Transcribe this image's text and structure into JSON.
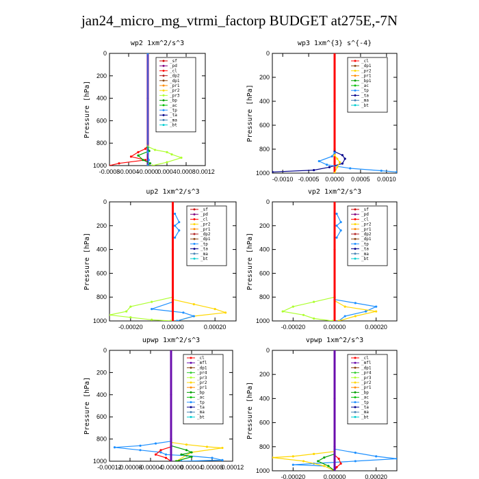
{
  "title": "jan24_micro_mg_vtrmi_factorp  BUDGET at275E,-7N",
  "colors": {
    "sf": "#cc0000",
    "pd": "#800080",
    "cl": "#ff0000",
    "dp2": "#b22222",
    "dp1": "#8b4513",
    "pr1": "#ff8c00",
    "pr2": "#ffd700",
    "pr3": "#adff2f",
    "pr4": "#32cd32",
    "bp": "#00a000",
    "bp1": "#00a000",
    "ac": "#00c000",
    "tp": "#1e90ff",
    "ta": "#00008b",
    "ma": "#4682b4",
    "bt": "#00ced1",
    "mfl": "#6a0dad"
  },
  "chart_data": [
    {
      "type": "line",
      "title": "wp2  1xm^2/s^3",
      "ylabel": "Pressure [hPa]",
      "xlim": [
        -0.0008,
        0.0012
      ],
      "ylim": [
        1000,
        0
      ],
      "xticks": [
        -0.0008,
        -0.0004,
        0.0,
        0.0004,
        0.0008,
        0.0012
      ],
      "xtick_labels": [
        "-0.0008",
        "-0.0004",
        "-0.0000",
        "0.0004",
        "0.0008",
        "0.0012"
      ],
      "yticks": [
        0,
        200,
        400,
        600,
        800,
        1000
      ],
      "ytick_labels": [
        "0",
        "200",
        "400",
        "600",
        "800",
        "1000"
      ],
      "legend": [
        "_sf",
        "_pd",
        "_cl",
        "_dp2",
        "_dp1",
        "_pr1",
        "_pr2",
        "_pr3",
        "_bp",
        "_ac",
        "_tp",
        "_ta",
        "_ma",
        "_bt"
      ],
      "legend_colors": [
        "sf",
        "pd",
        "cl",
        "dp2",
        "dp1",
        "pr1",
        "pr2",
        "pr3",
        "bp",
        "ac",
        "tp",
        "ta",
        "ma",
        "bt"
      ],
      "legend_position": "top-right",
      "series": [
        {
          "color": "pd",
          "x": [
            0,
            0,
            0,
            0
          ],
          "y": [
            0,
            400,
            800,
            1000
          ]
        },
        {
          "color": "cl",
          "x": [
            0,
            -5e-05,
            -0.0002,
            -0.00035,
            -5e-05,
            -0.0006,
            -0.0008
          ],
          "y": [
            820,
            850,
            880,
            920,
            950,
            980,
            1000
          ]
        },
        {
          "color": "pr3",
          "x": [
            0,
            0.00015,
            0.0004,
            0.0005,
            0.0007,
            0.0004,
            0.0001
          ],
          "y": [
            830,
            860,
            880,
            900,
            930,
            970,
            1000
          ]
        },
        {
          "color": "bp",
          "x": [
            0,
            3e-05,
            -0.0002,
            -0.0001,
            5e-05,
            0
          ],
          "y": [
            840,
            870,
            910,
            950,
            980,
            1000
          ]
        },
        {
          "color": "tp",
          "x": [
            0,
            0,
            2e-05,
            0
          ],
          "y": [
            0,
            880,
            950,
            1000
          ]
        }
      ]
    },
    {
      "type": "line",
      "title": "wp3  1xm^{3} s^{-4}",
      "ylabel": "Pressure [hPa]",
      "xlim": [
        -0.0012,
        0.0012
      ],
      "ylim": [
        1000,
        0
      ],
      "xticks": [
        -0.001,
        -0.0005,
        0.0,
        0.0005,
        0.001
      ],
      "xtick_labels": [
        "-0.0010",
        "-0.0005",
        "0.0000",
        "0.0005",
        "0.0010"
      ],
      "yticks": [
        0,
        200,
        400,
        600,
        800,
        1000
      ],
      "ytick_labels": [
        "0",
        "200",
        "400",
        "600",
        "800",
        "1000"
      ],
      "legend": [
        "_cl",
        "_dp1",
        "_pr2",
        "_pr1",
        "_bp1",
        "_ac",
        "_tp",
        "_ta",
        "_ma",
        "_bt"
      ],
      "legend_colors": [
        "cl",
        "dp1",
        "pr2",
        "pr1",
        "bp1",
        "ac",
        "tp",
        "ta",
        "ma",
        "bt"
      ],
      "legend_position": "top-right",
      "series": [
        {
          "color": "cl",
          "x": [
            0,
            0,
            0,
            0
          ],
          "y": [
            0,
            400,
            800,
            1000
          ]
        },
        {
          "color": "ta",
          "x": [
            0,
            0.00015,
            0.0002,
            0.00015,
            -0.0001,
            -0.0004,
            -0.0012
          ],
          "y": [
            820,
            850,
            880,
            920,
            950,
            975,
            990
          ]
        },
        {
          "color": "tp",
          "x": [
            0,
            -5e-05,
            -0.0003,
            -0.00015,
            0.0003,
            0.0009,
            0.0012
          ],
          "y": [
            830,
            860,
            900,
            930,
            960,
            980,
            990
          ]
        },
        {
          "color": "pr2",
          "x": [
            0,
            5e-05,
            0.0001,
            5e-05,
            0
          ],
          "y": [
            850,
            880,
            910,
            950,
            1000
          ]
        }
      ]
    },
    {
      "type": "line",
      "title": "up2  1xm^2/s^3",
      "ylabel": "Pressure [hPa]",
      "xlim": [
        -0.0003,
        0.0003
      ],
      "ylim": [
        1000,
        0
      ],
      "xticks": [
        -0.0002,
        0.0,
        0.0002
      ],
      "xtick_labels": [
        "-0.00020",
        "0.00000",
        "0.00020"
      ],
      "yticks": [
        0,
        200,
        400,
        600,
        800,
        1000
      ],
      "ytick_labels": [
        "0",
        "200",
        "400",
        "600",
        "800",
        "1000"
      ],
      "legend": [
        "_sf",
        "_pd",
        "_cl",
        "_pr2",
        "_pr1",
        "_dp2",
        "_dp1",
        "_tp",
        "_ta",
        "_ma",
        "_bt"
      ],
      "legend_colors": [
        "sf",
        "pd",
        "cl",
        "pr2",
        "pr1",
        "dp2",
        "dp1",
        "tp",
        "ta",
        "ma",
        "bt"
      ],
      "legend_position": "top-right",
      "series": [
        {
          "color": "tp",
          "x": [
            1e-05,
            3e-05,
            1e-05,
            3e-05,
            1e-05
          ],
          "y": [
            100,
            170,
            200,
            240,
            300
          ]
        },
        {
          "color": "pr3",
          "x": [
            0,
            -0.0001,
            -0.0002,
            -0.00022,
            -0.0003,
            -0.0002,
            -0.0001,
            -1e-05
          ],
          "y": [
            800,
            840,
            880,
            920,
            950,
            970,
            990,
            1000
          ]
        },
        {
          "color": "pr2",
          "x": [
            0,
            0.0001,
            0.0002,
            0.00025,
            0.0001,
            2e-05
          ],
          "y": [
            820,
            860,
            900,
            930,
            960,
            1000
          ]
        },
        {
          "color": "tp",
          "x": [
            0,
            -0.0001,
            5e-05,
            0.0001,
            2e-05
          ],
          "y": [
            840,
            900,
            930,
            960,
            1000
          ]
        },
        {
          "color": "cl",
          "x": [
            0,
            0,
            0,
            0
          ],
          "y": [
            0,
            400,
            800,
            1000
          ]
        }
      ]
    },
    {
      "type": "line",
      "title": "vp2  1xm^2/s^3",
      "ylabel": "Pressure [hPa]",
      "xlim": [
        -0.0003,
        0.0003
      ],
      "ylim": [
        1000,
        0
      ],
      "xticks": [
        -0.0002,
        0.0,
        0.0002
      ],
      "xtick_labels": [
        "-0.00020",
        "0.00000",
        "0.00020"
      ],
      "yticks": [
        0,
        200,
        400,
        600,
        800,
        1000
      ],
      "ytick_labels": [
        "0",
        "200",
        "400",
        "600",
        "800",
        "1000"
      ],
      "legend": [
        "_sf",
        "_pd",
        "_cl",
        "_pr2",
        "_pr1",
        "_dp2",
        "_dp1",
        "_tp",
        "_ta",
        "_ma",
        "_bt"
      ],
      "legend_colors": [
        "sf",
        "pd",
        "cl",
        "pr2",
        "pr1",
        "dp2",
        "dp1",
        "tp",
        "ta",
        "ma",
        "bt"
      ],
      "legend_position": "top-right",
      "series": [
        {
          "color": "tp",
          "x": [
            1e-05,
            3e-05,
            1e-05,
            3e-05,
            1e-05
          ],
          "y": [
            100,
            170,
            200,
            240,
            300
          ]
        },
        {
          "color": "pr3",
          "x": [
            0,
            -0.0001,
            -0.0002,
            -0.00025,
            -0.00015,
            -0.0001,
            -1e-05
          ],
          "y": [
            800,
            840,
            880,
            920,
            950,
            980,
            1000
          ]
        },
        {
          "color": "tp",
          "x": [
            0,
            0.0001,
            0.0002,
            0.00015,
            5e-05,
            2e-05
          ],
          "y": [
            820,
            850,
            880,
            920,
            960,
            1000
          ]
        },
        {
          "color": "pr2",
          "x": [
            0,
            5e-05,
            0.0002,
            0.0001,
            2e-05
          ],
          "y": [
            830,
            880,
            920,
            960,
            1000
          ]
        },
        {
          "color": "cl",
          "x": [
            0,
            0,
            0,
            0
          ],
          "y": [
            0,
            400,
            800,
            1000
          ]
        }
      ]
    },
    {
      "type": "line",
      "title": "upwp  1xm^2/s^3",
      "ylabel": "Pressure [hPa]",
      "xlim": [
        -0.00012,
        0.00012
      ],
      "ylim": [
        1000,
        0
      ],
      "xticks": [
        -0.00012,
        -8e-05,
        -4e-05,
        0.0,
        4e-05,
        8e-05,
        0.00012
      ],
      "xtick_labels": [
        "-0.00012",
        "-0.00008",
        "-0.00004",
        "-0.00000",
        "0.00004",
        "0.00008",
        "0.00012"
      ],
      "yticks": [
        0,
        200,
        400,
        600,
        800,
        1000
      ],
      "ytick_labels": [
        "0",
        "200",
        "400",
        "600",
        "800",
        "1000"
      ],
      "legend": [
        "_cl",
        "_mfl",
        "_dp1",
        "_pr4",
        "_pr3",
        "_pr2",
        "_pr1",
        "_bp",
        "_ac",
        "_tp",
        "_ta",
        "_ma",
        "_bt"
      ],
      "legend_colors": [
        "cl",
        "mfl",
        "dp1",
        "pr4",
        "pr3",
        "pr2",
        "pr1",
        "bp",
        "ac",
        "tp",
        "ta",
        "ma",
        "bt"
      ],
      "legend_position": "top-right",
      "series": [
        {
          "color": "tp",
          "x": [
            0,
            -3e-05,
            -6e-05,
            -0.00011,
            -6e-05,
            -2e-05,
            -1e-05,
            3e-05,
            8e-05,
            0.0001,
            2e-05
          ],
          "y": [
            820,
            840,
            860,
            875,
            900,
            920,
            940,
            950,
            970,
            990,
            1000
          ]
        },
        {
          "color": "pr2",
          "x": [
            0,
            3e-05,
            7e-05,
            0.0001,
            4e-05,
            1e-05
          ],
          "y": [
            830,
            850,
            870,
            880,
            920,
            1000
          ]
        },
        {
          "color": "bp",
          "x": [
            0,
            3e-05,
            4e-05,
            2e-05,
            4e-05,
            1e-05
          ],
          "y": [
            860,
            900,
            920,
            940,
            960,
            1000
          ]
        },
        {
          "color": "cl",
          "x": [
            0,
            -2e-05,
            -3e-05,
            -1e-05,
            0
          ],
          "y": [
            870,
            900,
            940,
            970,
            1000
          ]
        },
        {
          "color": "mfl",
          "x": [
            0,
            0,
            0,
            0
          ],
          "y": [
            0,
            400,
            800,
            1000
          ]
        }
      ]
    },
    {
      "type": "line",
      "title": "vpwp  1xm^2/s^3",
      "ylabel": "Pressure [hPa]",
      "xlim": [
        -0.0003,
        0.0003
      ],
      "ylim": [
        1000,
        0
      ],
      "xticks": [
        -0.0002,
        0.0,
        0.0002
      ],
      "xtick_labels": [
        "-0.00020",
        "0.00000",
        "0.00020"
      ],
      "yticks": [
        0,
        200,
        400,
        600,
        800,
        1000
      ],
      "ytick_labels": [
        "0",
        "200",
        "400",
        "600",
        "800",
        "1000"
      ],
      "legend": [
        "_cl",
        "_mfl",
        "_dp1",
        "_pr4",
        "_pr3",
        "_pr2",
        "_pr1",
        "_bp",
        "_ac",
        "_tp",
        "_ta",
        "_ma",
        "_bt"
      ],
      "legend_colors": [
        "cl",
        "mfl",
        "dp1",
        "pr4",
        "pr3",
        "pr2",
        "pr1",
        "bp",
        "ac",
        "tp",
        "ta",
        "ma",
        "bt"
      ],
      "legend_position": "top-right",
      "series": [
        {
          "color": "tp",
          "x": [
            0,
            0.0001,
            0.0002,
            0.0003,
            0.0001,
            -0.0001,
            -0.0002,
            -5e-05
          ],
          "y": [
            820,
            850,
            880,
            900,
            920,
            940,
            950,
            960
          ]
        },
        {
          "color": "pr2",
          "x": [
            0,
            -0.0001,
            -0.0002,
            -0.0003,
            -0.00015,
            -5e-05,
            0
          ],
          "y": [
            840,
            860,
            880,
            890,
            920,
            960,
            1000
          ]
        },
        {
          "color": "bp",
          "x": [
            0,
            -5e-05,
            -8e-05,
            -3e-05,
            0
          ],
          "y": [
            860,
            890,
            920,
            960,
            1000
          ]
        },
        {
          "color": "cl",
          "x": [
            0,
            2e-05,
            3e-05,
            1e-05,
            0
          ],
          "y": [
            870,
            900,
            940,
            970,
            1000
          ]
        },
        {
          "color": "mfl",
          "x": [
            0,
            0,
            0,
            0
          ],
          "y": [
            0,
            400,
            800,
            1000
          ]
        }
      ]
    }
  ]
}
